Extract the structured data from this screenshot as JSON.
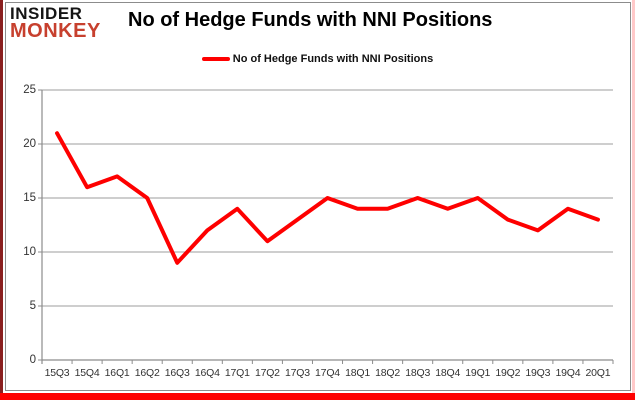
{
  "logo": {
    "line1": "INSIDER",
    "line2": "MONKEY"
  },
  "title": "No of Hedge Funds with NNI Positions",
  "legend": {
    "label": "No of Hedge Funds with NNI Positions"
  },
  "colors": {
    "line": "#fe0000",
    "grid": "#9d9d9d",
    "axis": "#8c8c8c",
    "tick_text": "#333333",
    "logo_black": "#151515",
    "logo_red": "#c7402e",
    "frame_left": "#8a1f1f",
    "frame_bottom": "#fe0000",
    "frame_right": "#ffc9c9",
    "chart_border": "#8c8c8c"
  },
  "chart_data": {
    "type": "line",
    "title": "No of Hedge Funds with NNI Positions",
    "categories": [
      "15Q3",
      "15Q4",
      "16Q1",
      "16Q2",
      "16Q3",
      "16Q4",
      "17Q1",
      "17Q2",
      "17Q3",
      "17Q4",
      "18Q1",
      "18Q2",
      "18Q3",
      "18Q4",
      "19Q1",
      "19Q2",
      "19Q3",
      "19Q4",
      "20Q1"
    ],
    "series": [
      {
        "name": "No of Hedge Funds with NNI Positions",
        "color": "#fe0000",
        "values": [
          21,
          16,
          17,
          15,
          9,
          12,
          14,
          11,
          13,
          15,
          14,
          14,
          15,
          14,
          15,
          13,
          12,
          14,
          13
        ]
      }
    ],
    "xlabel": "",
    "ylabel": "",
    "ylim": [
      0,
      25
    ],
    "yticks": [
      0,
      5,
      10,
      15,
      20,
      25
    ],
    "grid": true,
    "legend_position": "top"
  }
}
